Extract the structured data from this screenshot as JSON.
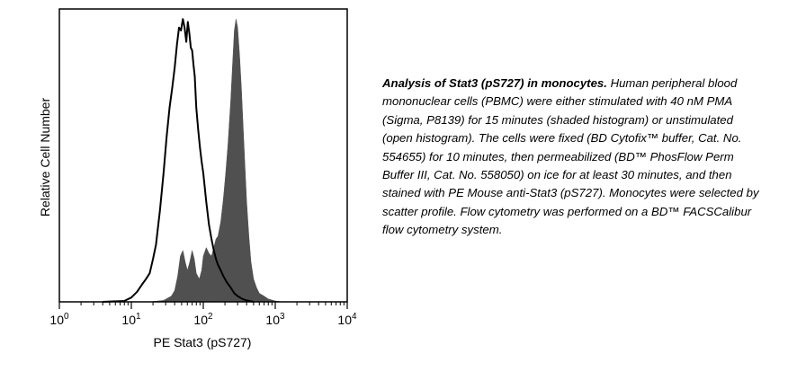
{
  "chart_data": {
    "type": "area",
    "xlabel": "PE Stat3 (pS727)",
    "ylabel": "Relative Cell Number",
    "x_scale": "log",
    "xlim": [
      1,
      10000
    ],
    "ylim": [
      0,
      100
    ],
    "x_ticks": [
      {
        "value": 1,
        "base": "10",
        "exp": "0"
      },
      {
        "value": 10,
        "base": "10",
        "exp": "1"
      },
      {
        "value": 100,
        "base": "10",
        "exp": "2"
      },
      {
        "value": 1000,
        "base": "10",
        "exp": "3"
      },
      {
        "value": 10000,
        "base": "10",
        "exp": "4"
      }
    ],
    "series": [
      {
        "style": "filled",
        "color": "#505050",
        "x": [
          4,
          10,
          18,
          28,
          36,
          40,
          44,
          48,
          52,
          56,
          60,
          65,
          70,
          75,
          80,
          88,
          95,
          100,
          110,
          120,
          130,
          140,
          150,
          160,
          175,
          190,
          205,
          220,
          240,
          255,
          270,
          285,
          300,
          320,
          340,
          360,
          380,
          400,
          430,
          460,
          500,
          550,
          600,
          700,
          800,
          1000,
          1300
        ],
        "y": [
          0,
          0,
          0,
          0.5,
          2,
          4,
          9,
          16,
          18,
          14,
          11,
          14,
          18,
          15,
          10,
          8,
          11,
          16,
          19,
          17,
          16,
          19,
          22,
          23,
          28,
          36,
          45,
          55,
          70,
          83,
          95,
          99,
          96,
          86,
          74,
          60,
          47,
          35,
          23,
          14,
          8,
          5,
          3,
          2,
          1,
          0.3,
          0
        ]
      },
      {
        "style": "outline",
        "color": "#000000",
        "x": [
          4,
          8,
          10,
          12,
          14,
          16,
          18,
          20,
          22,
          25,
          28,
          31,
          34,
          37,
          40,
          43,
          46,
          49,
          52,
          55,
          58,
          61,
          64,
          67,
          70,
          73,
          76,
          80,
          85,
          90,
          95,
          100,
          110,
          120,
          130,
          140,
          150,
          160,
          175,
          190,
          210,
          240,
          270,
          300,
          350,
          400,
          500
        ],
        "y": [
          0,
          0.3,
          1.5,
          3.5,
          6,
          8,
          10,
          15,
          20,
          32,
          45,
          58,
          68,
          75,
          82,
          90,
          96,
          95,
          99,
          96,
          91,
          98,
          94,
          89,
          88,
          83,
          79,
          68,
          60,
          54,
          49,
          45,
          35,
          27,
          22,
          18,
          15,
          13,
          11,
          9,
          7,
          5,
          3,
          2,
          1,
          0.5,
          0
        ]
      }
    ]
  },
  "caption": {
    "lead": "Analysis of Stat3 (pS727) in monocytes.",
    "body": "  Human peripheral blood mononuclear cells (PBMC) were either stimulated with 40 nM PMA (Sigma, P8139) for 15 minutes (shaded histogram) or unstimulated (open histogram).  The cells were fixed (BD Cytofix™ buffer, Cat. No. 554655) for 10 minutes, then permeabilized (BD™ PhosFlow Perm Buffer III, Cat. No. 558050) on ice for at least 30 minutes, and then stained with PE Mouse anti-Stat3 (pS727). Monocytes were selected by scatter profile.  Flow cytometry was performed on a BD™ FACSCalibur flow cytometry system."
  }
}
